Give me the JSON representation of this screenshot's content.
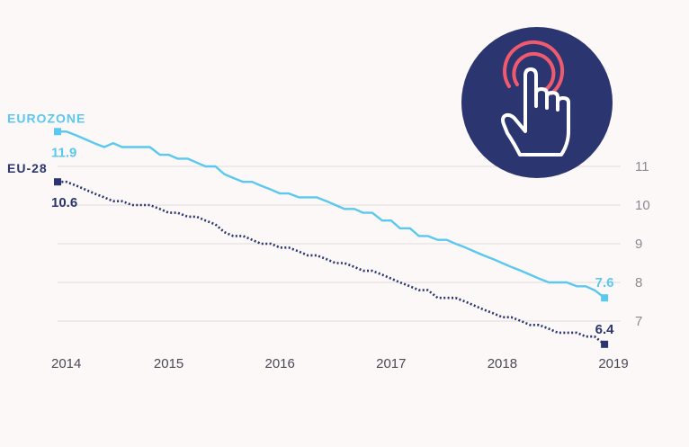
{
  "chart_data": {
    "type": "line",
    "title": "",
    "xlabel": "",
    "ylabel": "",
    "xlim": [
      2014,
      2019
    ],
    "ylim": [
      6.5,
      12
    ],
    "x_ticks": [
      "2014",
      "2015",
      "2016",
      "2017",
      "2018",
      "2019"
    ],
    "y_ticks": [
      "11",
      "10",
      "9",
      "8",
      "7"
    ],
    "grid": true,
    "series": [
      {
        "name": "EUROZONE",
        "color": "#5bc8ef",
        "style": "solid",
        "start_label": "11.9",
        "end_label": "7.6",
        "x": [
          2014.0,
          2014.08,
          2014.17,
          2014.25,
          2014.33,
          2014.42,
          2014.5,
          2014.58,
          2014.67,
          2014.75,
          2014.83,
          2014.92,
          2015.0,
          2015.08,
          2015.17,
          2015.25,
          2015.33,
          2015.42,
          2015.5,
          2015.58,
          2015.67,
          2015.75,
          2015.83,
          2015.92,
          2016.0,
          2016.08,
          2016.17,
          2016.25,
          2016.33,
          2016.42,
          2016.5,
          2016.58,
          2016.67,
          2016.75,
          2016.83,
          2016.92,
          2017.0,
          2017.08,
          2017.17,
          2017.25,
          2017.33,
          2017.42,
          2017.5,
          2017.58,
          2017.67,
          2017.75,
          2017.83,
          2017.92,
          2018.0,
          2018.08,
          2018.17,
          2018.25,
          2018.33,
          2018.42,
          2018.5,
          2018.58,
          2018.67,
          2018.75,
          2018.83,
          2018.92
        ],
        "values": [
          11.9,
          11.9,
          11.8,
          11.7,
          11.6,
          11.5,
          11.6,
          11.5,
          11.5,
          11.5,
          11.5,
          11.3,
          11.3,
          11.2,
          11.2,
          11.1,
          11.0,
          11.0,
          10.8,
          10.7,
          10.6,
          10.6,
          10.5,
          10.4,
          10.3,
          10.3,
          10.2,
          10.2,
          10.2,
          10.1,
          10.0,
          9.9,
          9.9,
          9.8,
          9.8,
          9.6,
          9.6,
          9.4,
          9.4,
          9.2,
          9.2,
          9.1,
          9.1,
          9.0,
          8.9,
          8.8,
          8.7,
          8.6,
          8.5,
          8.4,
          8.3,
          8.2,
          8.1,
          8.0,
          8.0,
          8.0,
          7.9,
          7.9,
          7.8,
          7.6
        ]
      },
      {
        "name": "EU-28",
        "color": "#2b3670",
        "style": "dotted",
        "start_label": "10.6",
        "end_label": "6.4",
        "x": [
          2014.0,
          2014.08,
          2014.17,
          2014.25,
          2014.33,
          2014.42,
          2014.5,
          2014.58,
          2014.67,
          2014.75,
          2014.83,
          2014.92,
          2015.0,
          2015.08,
          2015.17,
          2015.25,
          2015.33,
          2015.42,
          2015.5,
          2015.58,
          2015.67,
          2015.75,
          2015.83,
          2015.92,
          2016.0,
          2016.08,
          2016.17,
          2016.25,
          2016.33,
          2016.42,
          2016.5,
          2016.58,
          2016.67,
          2016.75,
          2016.83,
          2016.92,
          2017.0,
          2017.08,
          2017.17,
          2017.25,
          2017.33,
          2017.42,
          2017.5,
          2017.58,
          2017.67,
          2017.75,
          2017.83,
          2017.92,
          2018.0,
          2018.08,
          2018.17,
          2018.25,
          2018.33,
          2018.42,
          2018.5,
          2018.58,
          2018.67,
          2018.75,
          2018.83,
          2018.92
        ],
        "values": [
          10.6,
          10.6,
          10.5,
          10.4,
          10.3,
          10.2,
          10.1,
          10.1,
          10.0,
          10.0,
          10.0,
          9.9,
          9.8,
          9.8,
          9.7,
          9.7,
          9.6,
          9.5,
          9.3,
          9.2,
          9.2,
          9.1,
          9.0,
          9.0,
          8.9,
          8.9,
          8.8,
          8.7,
          8.7,
          8.6,
          8.5,
          8.5,
          8.4,
          8.3,
          8.3,
          8.2,
          8.1,
          8.0,
          7.9,
          7.8,
          7.8,
          7.6,
          7.6,
          7.6,
          7.5,
          7.4,
          7.3,
          7.2,
          7.1,
          7.1,
          7.0,
          6.9,
          6.9,
          6.8,
          6.7,
          6.7,
          6.7,
          6.6,
          6.6,
          6.4
        ]
      }
    ]
  },
  "icon": {
    "name": "tap-hand-icon",
    "bg": "#2b3670",
    "ring_color": "#ef5a6f"
  }
}
